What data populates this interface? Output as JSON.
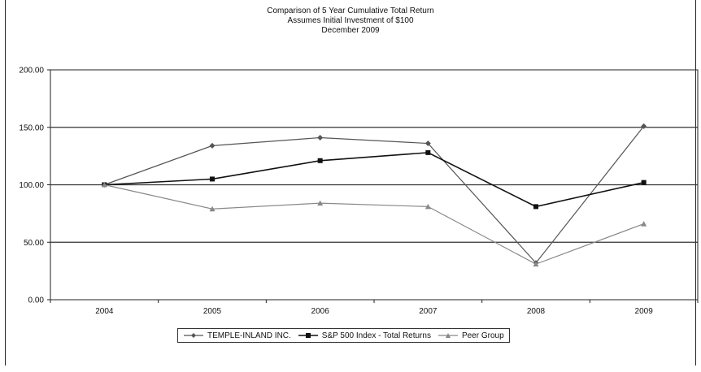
{
  "chart_data": {
    "type": "line",
    "title": "Comparison of 5 Year Cumulative Total Return",
    "subtitle": "Assumes Initial Investment of $100",
    "subtitle2": "December 2009",
    "xlabel": "",
    "ylabel": "",
    "categories": [
      "2004",
      "2005",
      "2006",
      "2007",
      "2008",
      "2009"
    ],
    "ylim": [
      0,
      200
    ],
    "yticks": [
      "0.00",
      "50.00",
      "100.00",
      "150.00",
      "200.00"
    ],
    "grid": true,
    "legend_position": "bottom",
    "series": [
      {
        "name": "TEMPLE-INLAND INC.",
        "marker": "diamond",
        "color": "#555555",
        "values": [
          100,
          134,
          141,
          136,
          32,
          151
        ]
      },
      {
        "name": "S&P 500 Index - Total Returns",
        "marker": "square",
        "color": "#111111",
        "values": [
          100,
          105,
          121,
          128,
          81,
          102
        ]
      },
      {
        "name": "Peer Group",
        "marker": "triangle",
        "color": "#888888",
        "values": [
          100,
          79,
          84,
          81,
          31,
          66
        ]
      }
    ]
  }
}
